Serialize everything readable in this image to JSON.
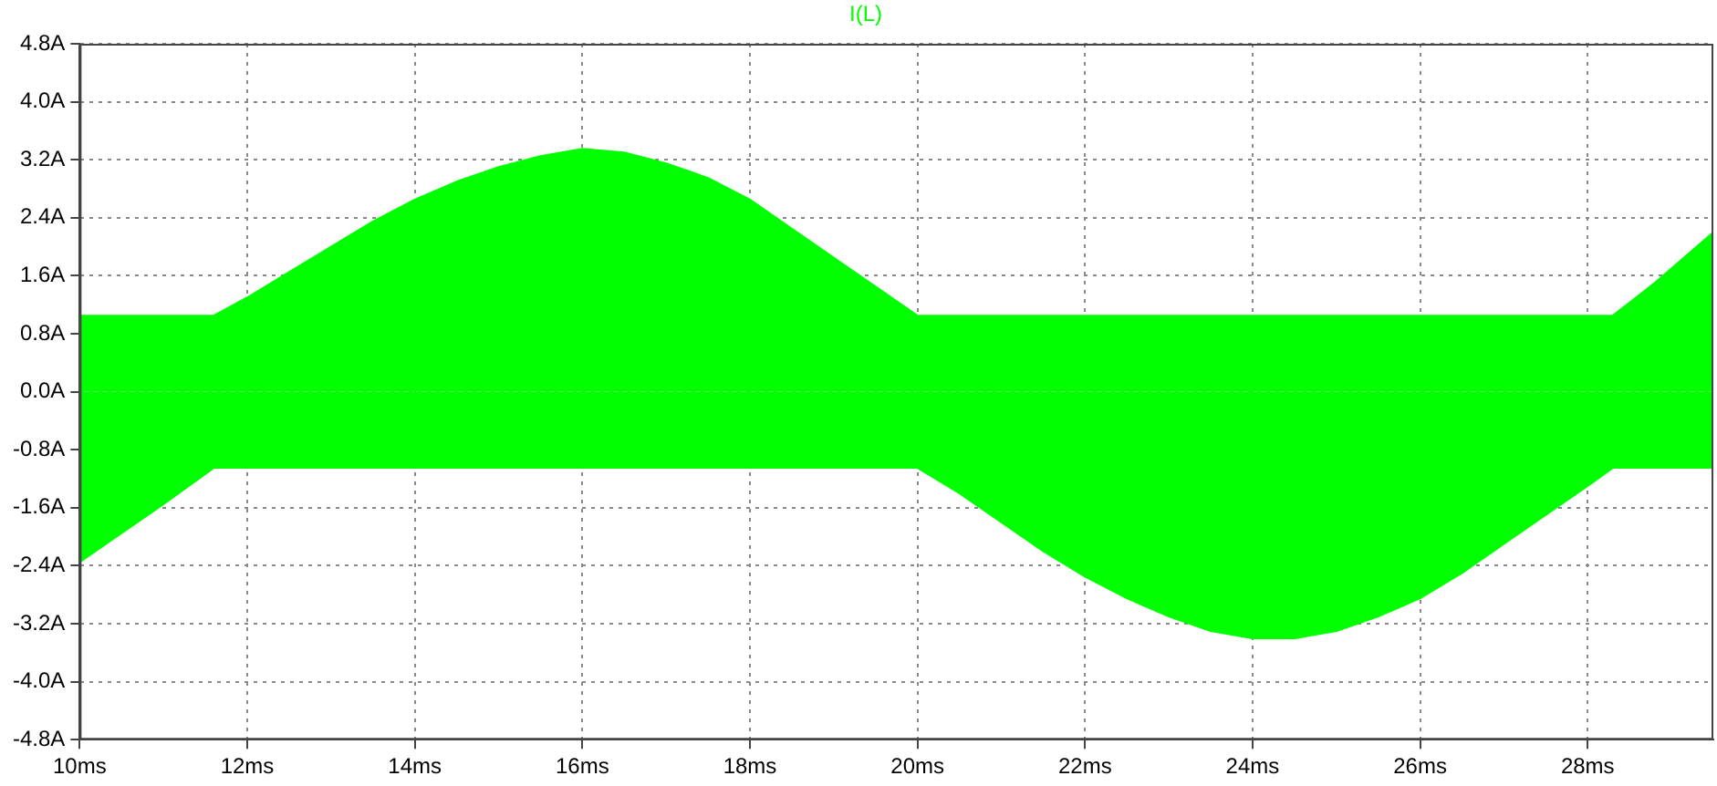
{
  "chart_data": {
    "type": "area",
    "x": [
      10,
      10.5,
      11,
      11.6,
      12,
      12.5,
      13,
      13.5,
      14,
      14.5,
      15,
      15.5,
      16,
      16.5,
      17,
      17.5,
      18,
      18.5,
      19,
      19.5,
      20,
      20.5,
      21,
      21.5,
      22,
      22.5,
      23,
      23.5,
      24,
      24.5,
      25,
      25.5,
      26,
      26.5,
      27,
      27.5,
      28,
      28.3,
      28.8,
      29.5
    ],
    "series": [
      {
        "name": "I(L)",
        "color": "#00ff00",
        "values": [
          1.05,
          1.05,
          1.05,
          1.05,
          1.3,
          1.65,
          2.0,
          2.35,
          2.65,
          2.9,
          3.1,
          3.25,
          3.35,
          3.3,
          3.15,
          2.95,
          2.65,
          2.25,
          1.85,
          1.45,
          1.05,
          1.05,
          1.05,
          1.05,
          1.05,
          1.05,
          1.05,
          1.05,
          1.05,
          1.05,
          1.05,
          1.05,
          1.05,
          1.05,
          1.05,
          1.05,
          1.05,
          1.05,
          1.5,
          2.2
        ]
      },
      {
        "color": "#00ff00",
        "values": [
          -2.35,
          -1.95,
          -1.55,
          -1.05,
          -1.05,
          -1.05,
          -1.05,
          -1.05,
          -1.05,
          -1.05,
          -1.05,
          -1.05,
          -1.05,
          -1.05,
          -1.05,
          -1.05,
          -1.05,
          -1.05,
          -1.05,
          -1.05,
          -1.05,
          -1.4,
          -1.8,
          -2.2,
          -2.55,
          -2.85,
          -3.1,
          -3.3,
          -3.4,
          -3.4,
          -3.3,
          -3.1,
          -2.85,
          -2.5,
          -2.1,
          -1.7,
          -1.3,
          -1.05,
          -1.05,
          -1.05
        ]
      }
    ],
    "xlim": [
      10,
      29.5
    ],
    "ylim": [
      -4.8,
      4.8
    ],
    "xticks": [
      {
        "value": 10,
        "label": "10ms"
      },
      {
        "value": 12,
        "label": "12ms"
      },
      {
        "value": 14,
        "label": "14ms"
      },
      {
        "value": 16,
        "label": "16ms"
      },
      {
        "value": 18,
        "label": "18ms"
      },
      {
        "value": 20,
        "label": "20ms"
      },
      {
        "value": 22,
        "label": "22ms"
      },
      {
        "value": 24,
        "label": "24ms"
      },
      {
        "value": 26,
        "label": "26ms"
      },
      {
        "value": 28,
        "label": "28ms"
      }
    ],
    "yticks": [
      {
        "value": -4.8,
        "label": "-4.8A"
      },
      {
        "value": -4,
        "label": "-4.0A"
      },
      {
        "value": -3.2,
        "label": "-3.2A"
      },
      {
        "value": -2.4,
        "label": "-2.4A"
      },
      {
        "value": -1.6,
        "label": "-1.6A"
      },
      {
        "value": -0.8,
        "label": "-0.8A"
      },
      {
        "value": 0,
        "label": "0.0A"
      },
      {
        "value": 0.8,
        "label": "0.8A"
      },
      {
        "value": 1.6,
        "label": "1.6A"
      },
      {
        "value": 2.4,
        "label": "2.4A"
      },
      {
        "value": 3.2,
        "label": "3.2A"
      },
      {
        "value": 4,
        "label": "4.0A"
      },
      {
        "value": 4.8,
        "label": "4.8A"
      }
    ],
    "grid": true,
    "legend": "top",
    "line_style": "solid",
    "marker": "none"
  }
}
